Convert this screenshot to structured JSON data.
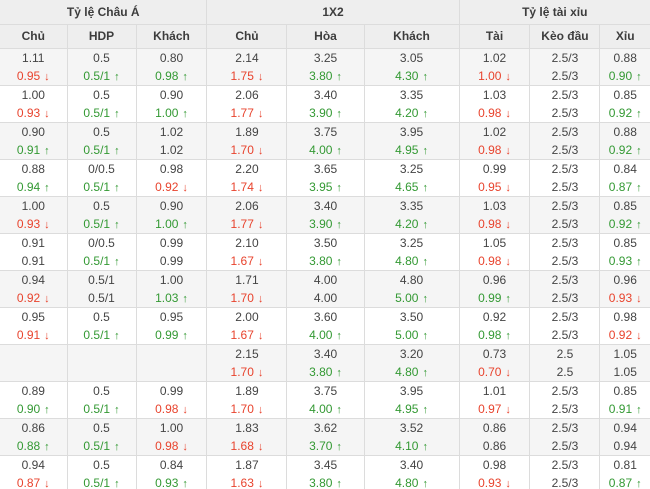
{
  "colors": {
    "up": "#339933",
    "down": "#e8432d",
    "text": "#444444",
    "header_bg": "#eeeeee",
    "alt_row_bg": "#f5f5f5",
    "border": "#dcdcdc"
  },
  "glyphs": {
    "up_arrow": "↑",
    "down_arrow": "↓"
  },
  "table": {
    "sections": [
      {
        "label": "Tỷ lệ Châu Á"
      },
      {
        "label": "1X2"
      },
      {
        "label": "Tỷ lệ tài xỉu"
      }
    ],
    "columns": [
      "Chủ",
      "HDP",
      "Khách",
      "Chủ",
      "Hòa",
      "Khách",
      "Tài",
      "Kèo đầu",
      "Xỉu"
    ],
    "rows": [
      {
        "cells": [
          {
            "top": "1.11",
            "bottom": "0.95",
            "trend": "down"
          },
          {
            "top": "0.5",
            "bottom": "0.5/1",
            "trend": "up"
          },
          {
            "top": "0.80",
            "bottom": "0.98",
            "trend": "up"
          },
          {
            "top": "2.14",
            "bottom": "1.75",
            "trend": "down"
          },
          {
            "top": "3.25",
            "bottom": "3.80",
            "trend": "up"
          },
          {
            "top": "3.05",
            "bottom": "4.30",
            "trend": "up"
          },
          {
            "top": "1.02",
            "bottom": "1.00",
            "trend": "down"
          },
          {
            "top": "2.5/3",
            "bottom": "2.5/3",
            "trend": "flat"
          },
          {
            "top": "0.88",
            "bottom": "0.90",
            "trend": "up"
          }
        ]
      },
      {
        "cells": [
          {
            "top": "1.00",
            "bottom": "0.93",
            "trend": "down"
          },
          {
            "top": "0.5",
            "bottom": "0.5/1",
            "trend": "up"
          },
          {
            "top": "0.90",
            "bottom": "1.00",
            "trend": "up"
          },
          {
            "top": "2.06",
            "bottom": "1.77",
            "trend": "down"
          },
          {
            "top": "3.40",
            "bottom": "3.90",
            "trend": "up"
          },
          {
            "top": "3.35",
            "bottom": "4.20",
            "trend": "up"
          },
          {
            "top": "1.03",
            "bottom": "0.98",
            "trend": "down"
          },
          {
            "top": "2.5/3",
            "bottom": "2.5/3",
            "trend": "flat"
          },
          {
            "top": "0.85",
            "bottom": "0.92",
            "trend": "up"
          }
        ]
      },
      {
        "cells": [
          {
            "top": "0.90",
            "bottom": "0.91",
            "trend": "up"
          },
          {
            "top": "0.5",
            "bottom": "0.5/1",
            "trend": "up"
          },
          {
            "top": "1.02",
            "bottom": "1.02",
            "trend": "flat"
          },
          {
            "top": "1.89",
            "bottom": "1.70",
            "trend": "down"
          },
          {
            "top": "3.75",
            "bottom": "4.00",
            "trend": "up"
          },
          {
            "top": "3.95",
            "bottom": "4.95",
            "trend": "up"
          },
          {
            "top": "1.02",
            "bottom": "0.98",
            "trend": "down"
          },
          {
            "top": "2.5/3",
            "bottom": "2.5/3",
            "trend": "flat"
          },
          {
            "top": "0.88",
            "bottom": "0.92",
            "trend": "up"
          }
        ]
      },
      {
        "cells": [
          {
            "top": "0.88",
            "bottom": "0.94",
            "trend": "up"
          },
          {
            "top": "0/0.5",
            "bottom": "0.5/1",
            "trend": "up"
          },
          {
            "top": "0.98",
            "bottom": "0.92",
            "trend": "down"
          },
          {
            "top": "2.20",
            "bottom": "1.74",
            "trend": "down"
          },
          {
            "top": "3.65",
            "bottom": "3.95",
            "trend": "up"
          },
          {
            "top": "3.25",
            "bottom": "4.65",
            "trend": "up"
          },
          {
            "top": "0.99",
            "bottom": "0.95",
            "trend": "down"
          },
          {
            "top": "2.5/3",
            "bottom": "2.5/3",
            "trend": "flat"
          },
          {
            "top": "0.84",
            "bottom": "0.87",
            "trend": "up"
          }
        ]
      },
      {
        "cells": [
          {
            "top": "1.00",
            "bottom": "0.93",
            "trend": "down"
          },
          {
            "top": "0.5",
            "bottom": "0.5/1",
            "trend": "up"
          },
          {
            "top": "0.90",
            "bottom": "1.00",
            "trend": "up"
          },
          {
            "top": "2.06",
            "bottom": "1.77",
            "trend": "down"
          },
          {
            "top": "3.40",
            "bottom": "3.90",
            "trend": "up"
          },
          {
            "top": "3.35",
            "bottom": "4.20",
            "trend": "up"
          },
          {
            "top": "1.03",
            "bottom": "0.98",
            "trend": "down"
          },
          {
            "top": "2.5/3",
            "bottom": "2.5/3",
            "trend": "flat"
          },
          {
            "top": "0.85",
            "bottom": "0.92",
            "trend": "up"
          }
        ]
      },
      {
        "cells": [
          {
            "top": "0.91",
            "bottom": "0.91",
            "trend": "flat"
          },
          {
            "top": "0/0.5",
            "bottom": "0.5/1",
            "trend": "up"
          },
          {
            "top": "0.99",
            "bottom": "0.99",
            "trend": "flat"
          },
          {
            "top": "2.10",
            "bottom": "1.67",
            "trend": "down"
          },
          {
            "top": "3.50",
            "bottom": "3.80",
            "trend": "up"
          },
          {
            "top": "3.25",
            "bottom": "4.80",
            "trend": "up"
          },
          {
            "top": "1.05",
            "bottom": "0.98",
            "trend": "down"
          },
          {
            "top": "2.5/3",
            "bottom": "2.5/3",
            "trend": "flat"
          },
          {
            "top": "0.85",
            "bottom": "0.93",
            "trend": "up"
          }
        ]
      },
      {
        "cells": [
          {
            "top": "0.94",
            "bottom": "0.92",
            "trend": "down"
          },
          {
            "top": "0.5/1",
            "bottom": "0.5/1",
            "trend": "flat"
          },
          {
            "top": "1.00",
            "bottom": "1.03",
            "trend": "up"
          },
          {
            "top": "1.71",
            "bottom": "1.70",
            "trend": "down"
          },
          {
            "top": "4.00",
            "bottom": "4.00",
            "trend": "flat"
          },
          {
            "top": "4.80",
            "bottom": "5.00",
            "trend": "up"
          },
          {
            "top": "0.96",
            "bottom": "0.99",
            "trend": "up"
          },
          {
            "top": "2.5/3",
            "bottom": "2.5/3",
            "trend": "flat"
          },
          {
            "top": "0.96",
            "bottom": "0.93",
            "trend": "down"
          }
        ]
      },
      {
        "cells": [
          {
            "top": "0.95",
            "bottom": "0.91",
            "trend": "down"
          },
          {
            "top": "0.5",
            "bottom": "0.5/1",
            "trend": "up"
          },
          {
            "top": "0.95",
            "bottom": "0.99",
            "trend": "up"
          },
          {
            "top": "2.00",
            "bottom": "1.67",
            "trend": "down"
          },
          {
            "top": "3.60",
            "bottom": "4.00",
            "trend": "up"
          },
          {
            "top": "3.50",
            "bottom": "5.00",
            "trend": "up"
          },
          {
            "top": "0.92",
            "bottom": "0.98",
            "trend": "up"
          },
          {
            "top": "2.5/3",
            "bottom": "2.5/3",
            "trend": "flat"
          },
          {
            "top": "0.98",
            "bottom": "0.92",
            "trend": "down"
          }
        ]
      },
      {
        "cells": [
          {
            "top": "",
            "bottom": "",
            "trend": "flat"
          },
          {
            "top": "",
            "bottom": "",
            "trend": "flat"
          },
          {
            "top": "",
            "bottom": "",
            "trend": "flat"
          },
          {
            "top": "2.15",
            "bottom": "1.70",
            "trend": "down"
          },
          {
            "top": "3.40",
            "bottom": "3.80",
            "trend": "up"
          },
          {
            "top": "3.20",
            "bottom": "4.80",
            "trend": "up"
          },
          {
            "top": "0.73",
            "bottom": "0.70",
            "trend": "down"
          },
          {
            "top": "2.5",
            "bottom": "2.5",
            "trend": "flat"
          },
          {
            "top": "1.05",
            "bottom": "1.05",
            "trend": "flat"
          }
        ]
      },
      {
        "cells": [
          {
            "top": "0.89",
            "bottom": "0.90",
            "trend": "up"
          },
          {
            "top": "0.5",
            "bottom": "0.5/1",
            "trend": "up"
          },
          {
            "top": "0.99",
            "bottom": "0.98",
            "trend": "down"
          },
          {
            "top": "1.89",
            "bottom": "1.70",
            "trend": "down"
          },
          {
            "top": "3.75",
            "bottom": "4.00",
            "trend": "up"
          },
          {
            "top": "3.95",
            "bottom": "4.95",
            "trend": "up"
          },
          {
            "top": "1.01",
            "bottom": "0.97",
            "trend": "down"
          },
          {
            "top": "2.5/3",
            "bottom": "2.5/3",
            "trend": "flat"
          },
          {
            "top": "0.85",
            "bottom": "0.91",
            "trend": "up"
          }
        ]
      },
      {
        "cells": [
          {
            "top": "0.86",
            "bottom": "0.88",
            "trend": "up"
          },
          {
            "top": "0.5",
            "bottom": "0.5/1",
            "trend": "up"
          },
          {
            "top": "1.00",
            "bottom": "0.98",
            "trend": "down"
          },
          {
            "top": "1.83",
            "bottom": "1.68",
            "trend": "down"
          },
          {
            "top": "3.62",
            "bottom": "3.70",
            "trend": "up"
          },
          {
            "top": "3.52",
            "bottom": "4.10",
            "trend": "up"
          },
          {
            "top": "0.86",
            "bottom": "0.86",
            "trend": "flat"
          },
          {
            "top": "2.5/3",
            "bottom": "2.5/3",
            "trend": "flat"
          },
          {
            "top": "0.94",
            "bottom": "0.94",
            "trend": "flat"
          }
        ]
      },
      {
        "cells": [
          {
            "top": "0.94",
            "bottom": "0.87",
            "trend": "down"
          },
          {
            "top": "0.5",
            "bottom": "0.5/1",
            "trend": "up"
          },
          {
            "top": "0.84",
            "bottom": "0.93",
            "trend": "up"
          },
          {
            "top": "1.87",
            "bottom": "1.63",
            "trend": "down"
          },
          {
            "top": "3.45",
            "bottom": "3.80",
            "trend": "up"
          },
          {
            "top": "3.40",
            "bottom": "4.80",
            "trend": "up"
          },
          {
            "top": "0.98",
            "bottom": "0.93",
            "trend": "down"
          },
          {
            "top": "2.5/3",
            "bottom": "2.5/3",
            "trend": "flat"
          },
          {
            "top": "0.81",
            "bottom": "0.87",
            "trend": "up"
          }
        ]
      }
    ]
  }
}
